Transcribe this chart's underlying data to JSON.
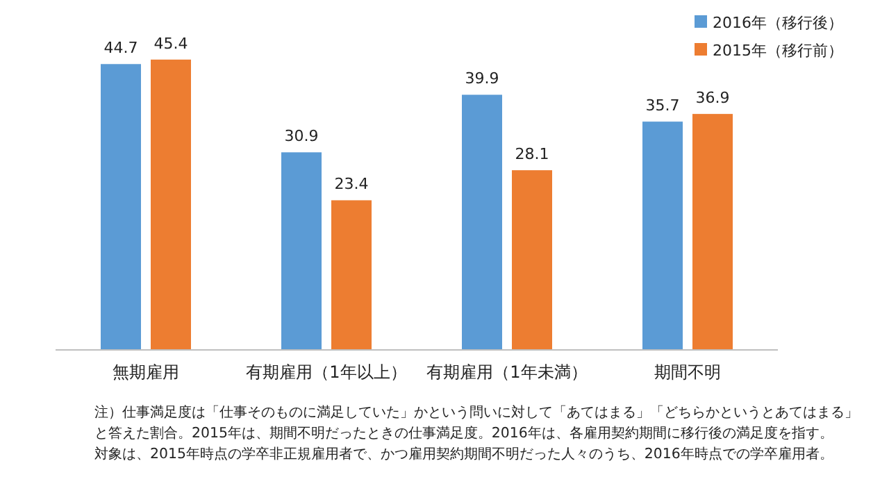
{
  "chart_data": {
    "type": "bar",
    "categories": [
      "無期雇用",
      "有期雇用（1年以上）",
      "有期雇用（1年未満）",
      "期間不明"
    ],
    "series": [
      {
        "name": "2016年（移行後）",
        "color": "#5b9bd5",
        "values": [
          44.7,
          30.9,
          39.9,
          35.7
        ]
      },
      {
        "name": "2015年（移行前）",
        "color": "#ed7d31",
        "values": [
          45.4,
          23.4,
          28.1,
          36.9
        ]
      }
    ],
    "data_labels": true,
    "legend": "top right",
    "tick_labels": "x",
    "annotations": [
      "注）仕事満足度は「仕事そのものに満足していた」かという問いに対して「あてはまる」「どちらかというとあてはまる」",
      "と答えた割合。2015年は、期間不明だったときの仕事満足度。2016年は、各雇用契約期間に移行後の満足度を指す。",
      "対象は、2015年時点の学卒非正規雇用者で、かつ雇用契約期間不明だった人々のうち、2016年時点での学卒雇用者。"
    ]
  }
}
